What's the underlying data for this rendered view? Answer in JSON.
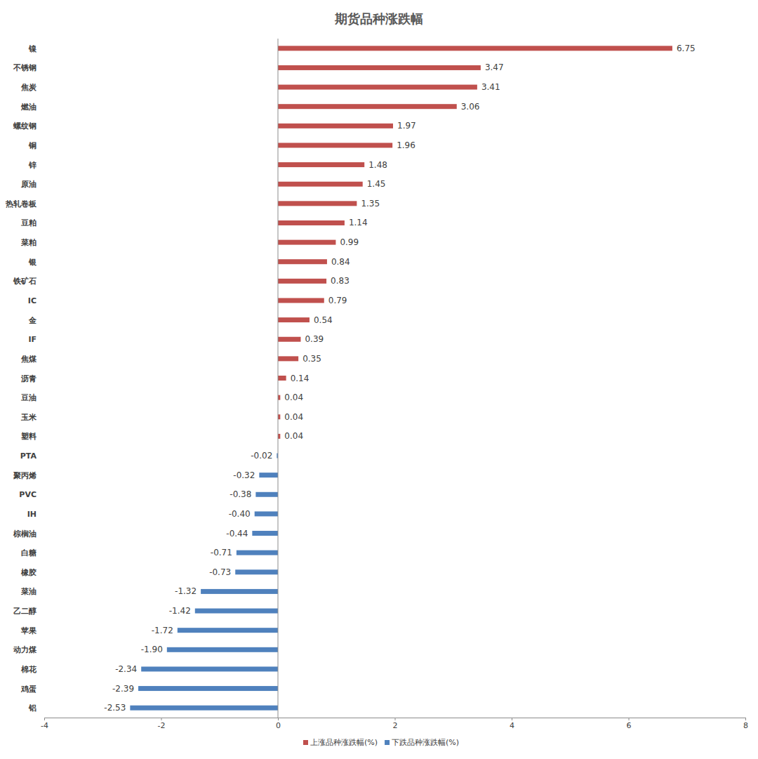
{
  "chart_data": {
    "type": "bar",
    "title": "期货品种涨跌幅",
    "orientation": "horizontal",
    "data_labels": true,
    "legend": "bottom",
    "grid": false,
    "categories": [
      "镍",
      "不锈钢",
      "焦炭",
      "燃油",
      "螺纹钢",
      "铜",
      "锌",
      "原油",
      "热轧卷板",
      "豆粕",
      "菜粕",
      "银",
      "铁矿石",
      "IC",
      "金",
      "IF",
      "焦煤",
      "沥青",
      "豆油",
      "玉米",
      "塑料",
      "PTA",
      "聚丙烯",
      "PVC",
      "IH",
      "棕榈油",
      "白糖",
      "橡胶",
      "菜油",
      "乙二醇",
      "苹果",
      "动力煤",
      "棉花",
      "鸡蛋",
      "铝"
    ],
    "xlim": [
      -4,
      8
    ],
    "xticks": [
      -4,
      -2,
      0,
      2,
      4,
      6,
      8
    ],
    "series": [
      {
        "name": "上涨品种涨跌幅(%)",
        "color": "#c0504d",
        "values": [
          6.75,
          3.47,
          3.41,
          3.06,
          1.97,
          1.96,
          1.48,
          1.45,
          1.35,
          1.14,
          0.99,
          0.84,
          0.83,
          0.79,
          0.54,
          0.39,
          0.35,
          0.14,
          0.04,
          0.04,
          0.04,
          null,
          null,
          null,
          null,
          null,
          null,
          null,
          null,
          null,
          null,
          null,
          null,
          null,
          null
        ],
        "value_labels": [
          "6.75",
          "3.47",
          "3.41",
          "3.06",
          "1.97",
          "1.96",
          "1.48",
          "1.45",
          "1.35",
          "1.14",
          "0.99",
          "0.84",
          "0.83",
          "0.79",
          "0.54",
          "0.39",
          "0.35",
          "0.14",
          "0.04",
          "0.04",
          "0.04",
          null,
          null,
          null,
          null,
          null,
          null,
          null,
          null,
          null,
          null,
          null,
          null,
          null,
          null
        ]
      },
      {
        "name": "下跌品种涨跌幅(%)",
        "color": "#4f81bd",
        "values": [
          null,
          null,
          null,
          null,
          null,
          null,
          null,
          null,
          null,
          null,
          null,
          null,
          null,
          null,
          null,
          null,
          null,
          null,
          null,
          null,
          null,
          -0.02,
          -0.32,
          -0.38,
          -0.4,
          -0.44,
          -0.71,
          -0.73,
          -1.32,
          -1.42,
          -1.72,
          -1.9,
          -2.34,
          -2.39,
          -2.53
        ],
        "value_labels": [
          null,
          null,
          null,
          null,
          null,
          null,
          null,
          null,
          null,
          null,
          null,
          null,
          null,
          null,
          null,
          null,
          null,
          null,
          null,
          null,
          null,
          "-0.02",
          "-0.32",
          "-0.38",
          "-0.40",
          "-0.44",
          "-0.71",
          "-0.73",
          "-1.32",
          "-1.42",
          "-1.72",
          "-1.90",
          "-2.34",
          "-2.39",
          "-2.53"
        ]
      }
    ]
  }
}
